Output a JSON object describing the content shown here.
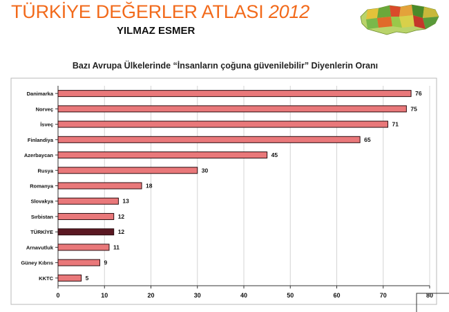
{
  "header": {
    "title_main": "TÜRKİYE DEĞERLER ATLASI",
    "title_year": "2012",
    "author": "YILMAZ ESMER"
  },
  "colors": {
    "title": "#f26a1b",
    "bar": "#e9787a",
    "bar_highlight": "#5a1822",
    "bar_stroke": "#2a0d10"
  },
  "chart_data": {
    "type": "bar",
    "orientation": "horizontal",
    "title": "Bazı Avrupa Ülkelerinde “İnsanların çoğuna güvenilebilir” Diyenlerin Oranı",
    "categories": [
      "Danimarka",
      "Norveç",
      "İsveç",
      "Finlandiya",
      "Azerbaycan",
      "Rusya",
      "Romanya",
      "Slovakya",
      "Sırbistan",
      "TÜRKİYE",
      "Arnavutluk",
      "Güney Kıbrıs",
      "KKTC"
    ],
    "values": [
      76,
      75,
      71,
      65,
      45,
      30,
      18,
      13,
      12,
      12,
      11,
      9,
      5
    ],
    "highlight": "TÜRKİYE",
    "xlim": [
      0,
      80
    ],
    "xticks": [
      0,
      10,
      20,
      30,
      40,
      50,
      60,
      70,
      80
    ],
    "xlabel": "",
    "ylabel": "",
    "grid": true,
    "data_labels": true
  }
}
